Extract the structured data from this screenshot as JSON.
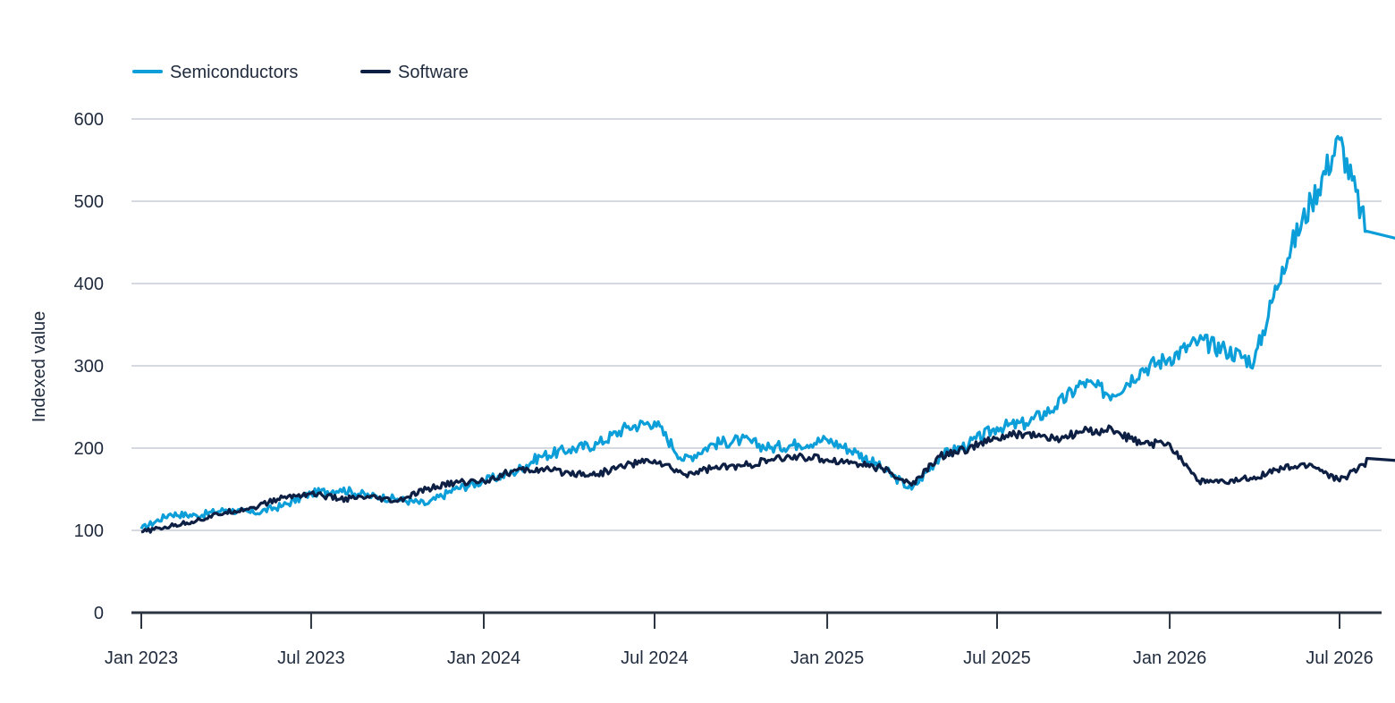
{
  "chart_data": {
    "type": "line",
    "title": "",
    "xlabel": "",
    "ylabel": "Indexed value",
    "ylim": [
      0,
      600
    ],
    "y_ticks": [
      0,
      100,
      200,
      300,
      400,
      500,
      600
    ],
    "x_ticks": [
      "Jan 2023",
      "Jul 2023",
      "Jan 2024",
      "Jul 2024",
      "Jan 2025",
      "Jul 2025",
      "Jan 2026",
      "Jul 2026"
    ],
    "grid": "horizontal",
    "legend_position": "top-left",
    "x": [
      "2023-01-01",
      "2023-02-01",
      "2023-03-01",
      "2023-04-01",
      "2023-05-01",
      "2023-06-01",
      "2023-07-01",
      "2023-08-01",
      "2023-09-01",
      "2023-10-01",
      "2023-11-01",
      "2023-12-01",
      "2024-01-01",
      "2024-02-01",
      "2024-03-01",
      "2024-04-01",
      "2024-05-01",
      "2024-06-01",
      "2024-07-01",
      "2024-08-01",
      "2024-09-01",
      "2024-10-01",
      "2024-11-01",
      "2024-12-01",
      "2025-01-01",
      "2025-02-01",
      "2025-03-01",
      "2025-04-01",
      "2025-05-01",
      "2025-06-01",
      "2025-07-01",
      "2025-08-01",
      "2025-09-01",
      "2025-10-01",
      "2025-11-01",
      "2025-12-01",
      "2026-01-01",
      "2026-02-01",
      "2026-03-01",
      "2026-04-01",
      "2026-05-01",
      "2026-06-01",
      "2026-07-01",
      "2026-08-01"
    ],
    "series": [
      {
        "name": "Semiconductors",
        "color": "#0b9ed8",
        "values": [
          102,
          120,
          118,
          125,
          121,
          130,
          145,
          150,
          142,
          138,
          132,
          150,
          160,
          170,
          190,
          198,
          205,
          225,
          232,
          185,
          205,
          210,
          200,
          205,
          210,
          195,
          175,
          150,
          190,
          205,
          225,
          230,
          250,
          280,
          265,
          295,
          310,
          330,
          320,
          305,
          420,
          500,
          575,
          455
        ]
      },
      {
        "name": "Software",
        "color": "#0e1f44",
        "values": [
          98,
          105,
          112,
          122,
          128,
          140,
          145,
          138,
          140,
          135,
          150,
          158,
          160,
          172,
          174,
          170,
          168,
          180,
          185,
          168,
          176,
          178,
          185,
          190,
          186,
          182,
          175,
          155,
          190,
          200,
          212,
          218,
          210,
          220,
          222,
          205,
          205,
          160,
          158,
          165,
          175,
          180,
          160,
          185
        ]
      }
    ]
  }
}
